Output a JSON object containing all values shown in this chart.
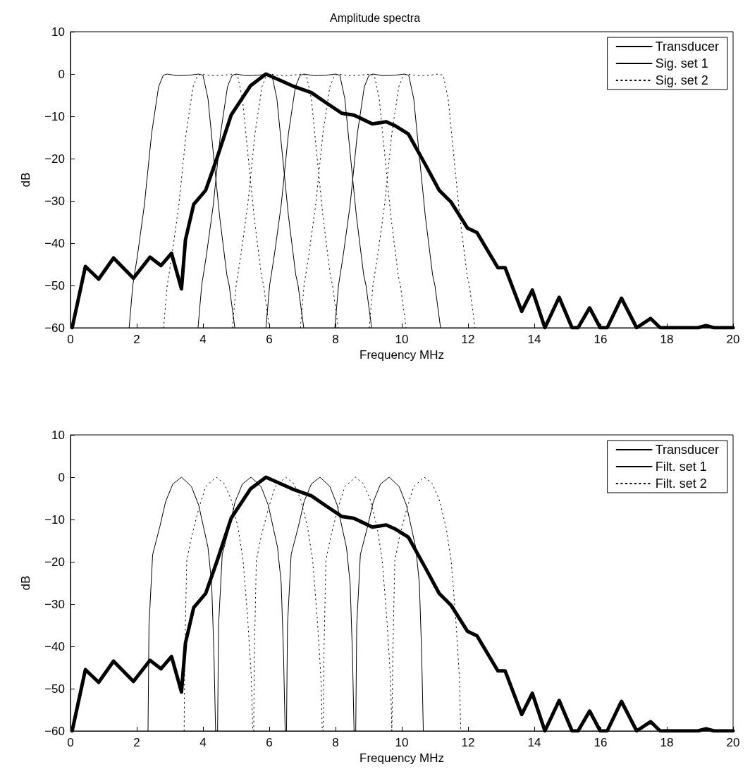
{
  "chart_data": [
    {
      "type": "line",
      "title": "Amplitude spectra",
      "xlabel": "Frequency MHz",
      "ylabel": "dB",
      "xlim": [
        0,
        20
      ],
      "xticks": [
        0,
        2,
        4,
        6,
        8,
        10,
        12,
        14,
        16,
        18,
        20
      ],
      "ylim": [
        -60,
        10
      ],
      "yticks": [
        -60,
        -50,
        -40,
        -30,
        -20,
        -10,
        0,
        10
      ],
      "grid": false,
      "legend": "top right",
      "marker": "none",
      "series": [
        {
          "name": "Transducer",
          "color": "#000000",
          "line_style": "solid",
          "x": [
            0.05,
            0.45,
            0.85,
            1.3,
            1.9,
            2.4,
            2.73,
            3.05,
            3.35,
            3.47,
            3.72,
            4.08,
            4.43,
            4.85,
            5.43,
            5.9,
            6.7,
            7.27,
            7.7,
            8.19,
            8.55,
            9.11,
            9.53,
            9.79,
            10.2,
            10.71,
            11.13,
            11.49,
            11.98,
            12.27,
            12.9,
            13.12,
            13.62,
            13.94,
            14.32,
            14.75,
            15.14,
            15.32,
            15.67,
            15.99,
            16.2,
            16.63,
            17.09,
            17.51,
            17.8,
            18.94,
            19.18,
            19.43,
            20
          ],
          "values": [
            -60,
            -45.5,
            -48.5,
            -43.5,
            -48.3,
            -43.3,
            -45.3,
            -42.4,
            -50.8,
            -39.2,
            -30.8,
            -27.5,
            -19.7,
            -9.7,
            -2.8,
            0,
            -2.8,
            -4.4,
            -6.7,
            -9.3,
            -9.7,
            -11.8,
            -11.3,
            -12.2,
            -14.2,
            -21.4,
            -27.5,
            -30.3,
            -36.4,
            -37.5,
            -45.8,
            -45.8,
            -56.1,
            -51.1,
            -60,
            -52.8,
            -60,
            -60,
            -55.3,
            -60,
            -60,
            -53,
            -60,
            -57.8,
            -60,
            -60,
            -59.5,
            -60,
            -60
          ]
        },
        {
          "name": "Sig. set 1",
          "color": "#000000",
          "line_style": "solid",
          "x": [
            1.77,
            1.88,
            2.02,
            2.23,
            2.45,
            2.66,
            2.8,
            2.92,
            3.22,
            3.57,
            3.87,
            4.0,
            4.15,
            4.29,
            4.5,
            4.72,
            4.79,
            4.96,
            3.85,
            3.96,
            4.1,
            4.31,
            4.53,
            4.74,
            4.88,
            5.0,
            5.3,
            5.65,
            5.95,
            6.08,
            6.23,
            6.37,
            6.58,
            6.8,
            6.87,
            7.04,
            5.9,
            6.01,
            6.15,
            6.36,
            6.58,
            6.79,
            6.93,
            7.05,
            7.35,
            7.7,
            8.0,
            8.13,
            8.28,
            8.42,
            8.63,
            8.85,
            8.92,
            9.09,
            7.98,
            8.09,
            8.23,
            8.44,
            8.66,
            8.87,
            9.01,
            9.13,
            9.43,
            9.78,
            10.08,
            10.21,
            10.36,
            10.5,
            10.71,
            10.93,
            11.0,
            11.17
          ],
          "values": [
            -60,
            -50,
            -43,
            -31,
            -14,
            -3,
            -0.3,
            0,
            -0.4,
            -0.3,
            0,
            -0.3,
            -5.8,
            -17,
            -33.6,
            -47.5,
            -50,
            -60,
            -60,
            -50,
            -43,
            -31,
            -14,
            -3,
            -0.3,
            0,
            -0.4,
            -0.3,
            0,
            -0.3,
            -5.8,
            -17,
            -33.6,
            -47.5,
            -50,
            -60,
            -60,
            -50,
            -43,
            -31,
            -14,
            -3,
            -0.3,
            0,
            -0.4,
            -0.3,
            0,
            -0.3,
            -5.8,
            -17,
            -33.6,
            -47.5,
            -50,
            -60,
            -60,
            -50,
            -43,
            -31,
            -14,
            -3,
            -0.3,
            0,
            -0.4,
            -0.3,
            0,
            -0.3,
            -5.8,
            -17,
            -33.6,
            -47.5,
            -50,
            -60
          ]
        },
        {
          "name": "Sig. set 2",
          "color": "#000000",
          "line_style": "dotted",
          "x": [
            2.81,
            2.92,
            3.06,
            3.27,
            3.49,
            3.7,
            3.84,
            3.96,
            4.26,
            4.61,
            4.91,
            5.04,
            5.19,
            5.33,
            5.54,
            5.76,
            5.83,
            6.0,
            4.89,
            5.0,
            5.14,
            5.35,
            5.57,
            5.78,
            5.92,
            6.04,
            6.34,
            6.69,
            6.99,
            7.12,
            7.27,
            7.41,
            7.62,
            7.84,
            7.91,
            8.08,
            6.94,
            7.05,
            7.19,
            7.4,
            7.62,
            7.83,
            7.97,
            8.09,
            8.39,
            8.74,
            9.04,
            9.17,
            9.32,
            9.46,
            9.67,
            9.89,
            9.96,
            10.13,
            9.02,
            9.13,
            9.27,
            9.48,
            9.7,
            9.91,
            10.05,
            10.17,
            10.47,
            10.82,
            11.12,
            11.25,
            11.4,
            11.54,
            11.75,
            11.97,
            12.04,
            12.21
          ],
          "values": [
            -60,
            -50,
            -43,
            -31,
            -14,
            -3,
            -0.3,
            0,
            -0.4,
            -0.3,
            0,
            -0.3,
            -5.8,
            -17,
            -33.6,
            -47.5,
            -50,
            -60,
            -60,
            -50,
            -43,
            -31,
            -14,
            -3,
            -0.3,
            0,
            -0.4,
            -0.3,
            0,
            -0.3,
            -5.8,
            -17,
            -33.6,
            -47.5,
            -50,
            -60,
            -60,
            -50,
            -43,
            -31,
            -14,
            -3,
            -0.3,
            0,
            -0.4,
            -0.3,
            0,
            -0.3,
            -5.8,
            -17,
            -33.6,
            -47.5,
            -50,
            -60,
            -60,
            -50,
            -43,
            -31,
            -14,
            -3,
            -0.3,
            0,
            -0.4,
            -0.3,
            0,
            -0.3,
            -5.8,
            -17,
            -33.6,
            -47.5,
            -50,
            -60
          ]
        }
      ]
    },
    {
      "type": "line",
      "xlabel": "Frequency MHz",
      "ylabel": "dB",
      "xlim": [
        0,
        20
      ],
      "xticks": [
        0,
        2,
        4,
        6,
        8,
        10,
        12,
        14,
        16,
        18,
        20
      ],
      "ylim": [
        -60,
        10
      ],
      "yticks": [
        -60,
        -50,
        -40,
        -30,
        -20,
        -10,
        0,
        10
      ],
      "grid": false,
      "legend": "top right",
      "marker": "none",
      "series": [
        {
          "name": "Transducer",
          "color": "#000000",
          "line_style": "solid",
          "x": [
            0.05,
            0.45,
            0.85,
            1.3,
            1.9,
            2.4,
            2.73,
            3.05,
            3.35,
            3.47,
            3.72,
            4.08,
            4.43,
            4.85,
            5.43,
            5.9,
            6.7,
            7.27,
            7.7,
            8.19,
            8.55,
            9.11,
            9.53,
            9.79,
            10.2,
            10.71,
            11.13,
            11.49,
            11.98,
            12.27,
            12.9,
            13.12,
            13.62,
            13.94,
            14.32,
            14.75,
            15.14,
            15.32,
            15.67,
            15.99,
            16.2,
            16.63,
            17.09,
            17.51,
            17.8,
            18.94,
            19.18,
            19.43,
            20
          ],
          "values": [
            -60,
            -45.5,
            -48.5,
            -43.5,
            -48.3,
            -43.3,
            -45.3,
            -42.4,
            -50.8,
            -39.2,
            -30.8,
            -27.5,
            -19.7,
            -9.7,
            -2.8,
            0,
            -2.8,
            -4.4,
            -6.7,
            -9.3,
            -9.7,
            -11.8,
            -11.3,
            -12.2,
            -14.2,
            -21.4,
            -27.5,
            -30.3,
            -36.4,
            -37.5,
            -45.8,
            -45.8,
            -56.1,
            -51.1,
            -60,
            -52.8,
            -60,
            -60,
            -55.3,
            -60,
            -60,
            -53,
            -60,
            -57.8,
            -60,
            -60,
            -59.5,
            -60,
            -60
          ]
        },
        {
          "name": "Filt. set 1",
          "color": "#000000",
          "line_style": "solid",
          "x": [
            2.34,
            2.37,
            2.48,
            2.7,
            2.87,
            3.09,
            3.35,
            3.65,
            3.87,
            4.01,
            4.15,
            4.26,
            4.33,
            4.38,
            4.44,
            4.47,
            4.58,
            4.8,
            4.97,
            5.19,
            5.45,
            5.75,
            5.97,
            6.11,
            6.25,
            6.36,
            6.43,
            6.48,
            6.52,
            6.55,
            6.66,
            6.88,
            7.05,
            7.27,
            7.53,
            7.83,
            8.05,
            8.19,
            8.33,
            8.44,
            8.51,
            8.56,
            8.61,
            8.64,
            8.75,
            8.97,
            9.14,
            9.36,
            9.62,
            9.92,
            10.14,
            10.28,
            10.42,
            10.53,
            10.6,
            10.65
          ],
          "values": [
            -60,
            -35,
            -18.3,
            -11.6,
            -5.8,
            -1.6,
            0,
            -2.2,
            -6.6,
            -11.6,
            -16.6,
            -25,
            -41.7,
            -60,
            -60,
            -35,
            -18.3,
            -11.6,
            -5.8,
            -1.6,
            0,
            -2.2,
            -6.6,
            -11.6,
            -16.6,
            -25,
            -41.7,
            -60,
            -60,
            -35,
            -18.3,
            -11.6,
            -5.8,
            -1.6,
            0,
            -2.2,
            -6.6,
            -11.6,
            -16.6,
            -25,
            -41.7,
            -60,
            -60,
            -35,
            -18.3,
            -11.6,
            -5.8,
            -1.6,
            0,
            -2.2,
            -6.6,
            -11.6,
            -16.6,
            -25,
            -41.7,
            -60
          ]
        },
        {
          "name": "Filt. set 2",
          "color": "#000000",
          "line_style": "dotted",
          "x": [
            3.43,
            3.45,
            3.51,
            3.65,
            3.87,
            4.08,
            4.4,
            4.64,
            4.85,
            5.06,
            5.21,
            5.35,
            5.46,
            5.5,
            5.53,
            5.55,
            5.61,
            5.75,
            5.97,
            6.18,
            6.5,
            6.74,
            6.95,
            7.16,
            7.31,
            7.45,
            7.56,
            7.6,
            7.63,
            7.65,
            7.71,
            7.85,
            8.07,
            8.28,
            8.6,
            8.84,
            9.05,
            9.26,
            9.41,
            9.55,
            9.66,
            9.7,
            9.71,
            9.73,
            9.79,
            9.93,
            10.15,
            10.36,
            10.68,
            10.92,
            11.13,
            11.34,
            11.49,
            11.63,
            11.74,
            11.78
          ],
          "values": [
            -60,
            -41.7,
            -19.7,
            -14.2,
            -7.5,
            -2.2,
            0,
            -1.5,
            -5.3,
            -12,
            -19.7,
            -33.6,
            -47.5,
            -60,
            -60,
            -41.7,
            -19.7,
            -14.2,
            -7.5,
            -2.2,
            0,
            -1.5,
            -5.3,
            -12,
            -19.7,
            -33.6,
            -47.5,
            -60,
            -60,
            -41.7,
            -19.7,
            -14.2,
            -7.5,
            -2.2,
            0,
            -1.5,
            -5.3,
            -12,
            -19.7,
            -33.6,
            -47.5,
            -60,
            -60,
            -41.7,
            -19.7,
            -14.2,
            -7.5,
            -2.2,
            0,
            -1.5,
            -5.3,
            -12,
            -19.7,
            -33.6,
            -47.5,
            -60
          ]
        }
      ]
    }
  ]
}
